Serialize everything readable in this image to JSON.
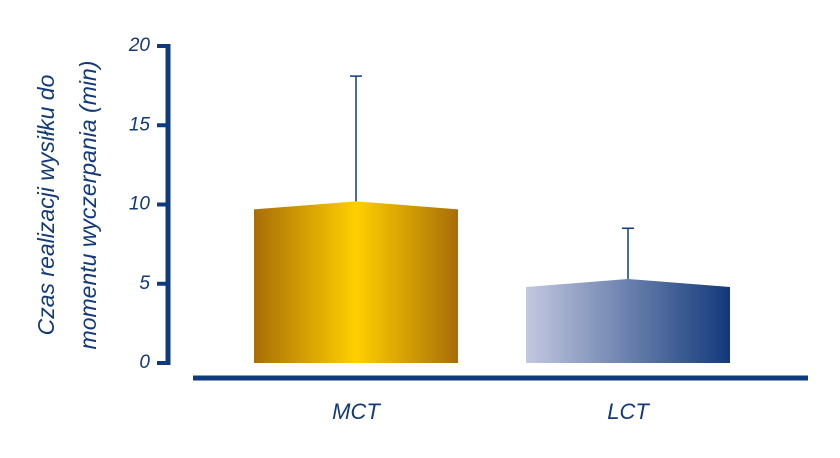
{
  "chart_data": {
    "type": "bar",
    "ylabel": [
      "Czas realizacji wysiłku do",
      "momentu wyczerpania (min)"
    ],
    "categories": [
      "MCT",
      "LCT"
    ],
    "values": [
      10.2,
      5.3
    ],
    "errors": [
      7.9,
      3.2
    ],
    "colors": [
      [
        "#a86e08",
        "#ffcf00",
        "#a86e08"
      ],
      [
        "#c3c8e0",
        "#12397a"
      ]
    ],
    "axis_color": "#0f3a7d",
    "ylim": [
      0,
      20
    ],
    "yticks": [
      0,
      5,
      10,
      15,
      20
    ]
  }
}
